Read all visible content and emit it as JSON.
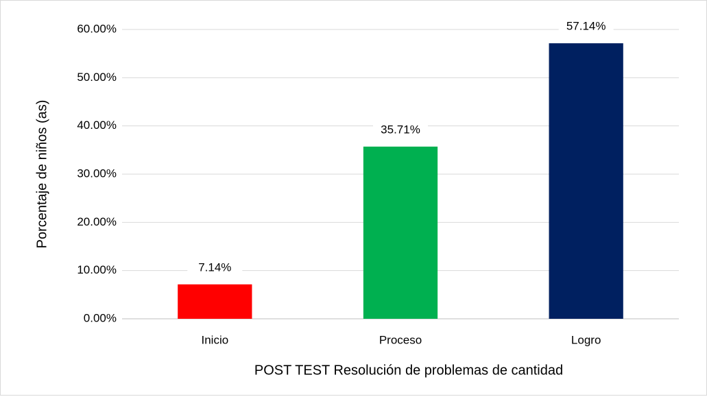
{
  "chart_data": {
    "type": "bar",
    "x_label": "POST TEST Resolución de problemas de cantidad",
    "y_label": "Porcentaje de niños (as)",
    "categories": [
      "Inicio",
      "Proceso",
      "Logro"
    ],
    "values": [
      7.14,
      35.71,
      57.14
    ],
    "value_labels": [
      "7.14%",
      "35.71%",
      "57.14%"
    ],
    "colors": [
      "#ff0000",
      "#00b050",
      "#002060"
    ],
    "ylim": [
      0,
      60
    ],
    "yticks": [
      {
        "value": 0,
        "label": "0.00%"
      },
      {
        "value": 10,
        "label": "10.00%"
      },
      {
        "value": 20,
        "label": "20.00%"
      },
      {
        "value": 30,
        "label": "30.00%"
      },
      {
        "value": 40,
        "label": "40.00%"
      },
      {
        "value": 50,
        "label": "50.00%"
      },
      {
        "value": 60,
        "label": "60.00%"
      }
    ],
    "grid": true
  }
}
